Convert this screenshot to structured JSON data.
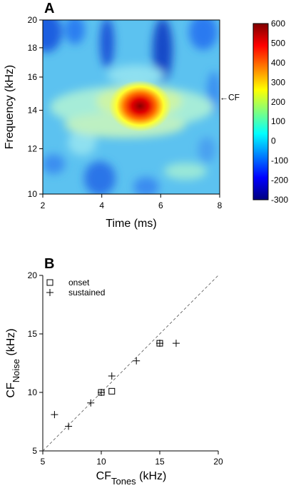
{
  "chart_data": [
    {
      "panel": "A",
      "type": "heatmap",
      "xlabel": "Time (ms)",
      "ylabel": "Frequency (kHz)",
      "xlim": [
        2,
        8
      ],
      "ylim": [
        10,
        20
      ],
      "yscale": "log",
      "xticks": [
        "2",
        "4",
        "6",
        "8"
      ],
      "yticks": [
        "10",
        "12",
        "14",
        "16",
        "18",
        "20"
      ],
      "colorbar": {
        "ticks": [
          "600",
          "500",
          "400",
          "300",
          "200",
          "100",
          "0",
          "-100",
          "-200",
          "-300"
        ],
        "range": [
          -300,
          600
        ],
        "colors": [
          "#00007f",
          "#0000ff",
          "#007fff",
          "#00ffff",
          "#7fff7f",
          "#ffff00",
          "#ff7f00",
          "#ff0000",
          "#7f0000"
        ]
      },
      "annotation": "←CF",
      "annotation_y": 14.7,
      "peak": {
        "x": 5.3,
        "y": 14.2,
        "value": 600
      },
      "grid": false
    },
    {
      "panel": "B",
      "type": "scatter",
      "xlabel_main": "CF",
      "xlabel_sub": "Tones",
      "xlabel_unit": " (kHz)",
      "ylabel_main": "CF",
      "ylabel_sub": "Noise",
      "ylabel_unit": " (kHz)",
      "xlim": [
        5,
        20
      ],
      "ylim": [
        5,
        20
      ],
      "xticks": [
        "5",
        "10",
        "15",
        "20"
      ],
      "yticks": [
        "5",
        "10",
        "15",
        "20"
      ],
      "grid": false,
      "diagonal": true,
      "legend_placement": "top-left",
      "series": [
        {
          "name": "onset",
          "marker": "square",
          "points": [
            [
              10,
              10
            ],
            [
              10.9,
              10.1
            ],
            [
              15,
              14.2
            ]
          ]
        },
        {
          "name": "sustained",
          "marker": "plus",
          "points": [
            [
              6,
              8.1
            ],
            [
              7.2,
              7.1
            ],
            [
              9.1,
              9.1
            ],
            [
              10,
              10
            ],
            [
              10.9,
              11.4
            ],
            [
              13,
              12.7
            ],
            [
              15,
              14.2
            ],
            [
              16.4,
              14.2
            ]
          ]
        }
      ]
    }
  ]
}
